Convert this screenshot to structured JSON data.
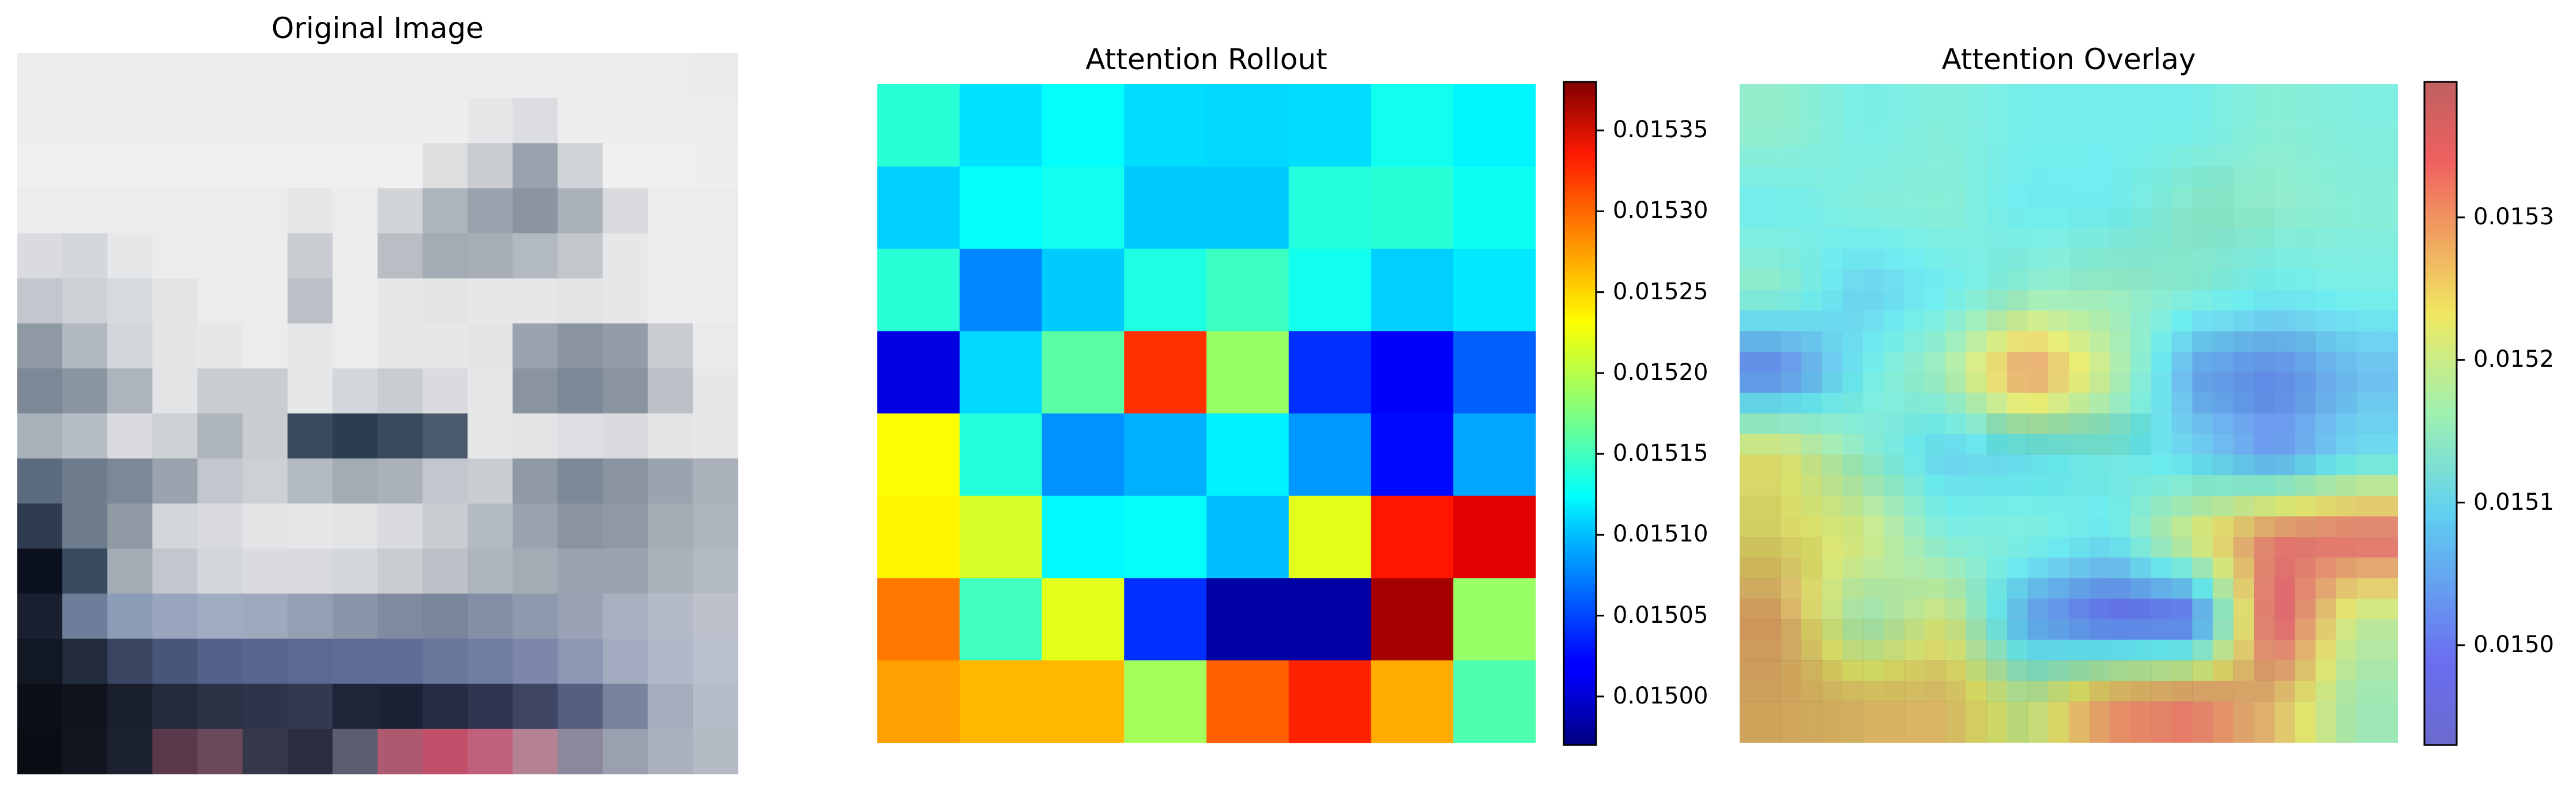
{
  "chart_data": [
    {
      "type": "image",
      "title": "Original Image",
      "grid": false,
      "rows": 16,
      "cols": 16,
      "pixels": [
        [
          "#ececec",
          "#ececec",
          "#ececec",
          "#ececec",
          "#ececec",
          "#ececec",
          "#ececec",
          "#ececec",
          "#ececec",
          "#ececec",
          "#ececec",
          "#ececec",
          "#ececec",
          "#ececec",
          "#ececec",
          "#ebebeb"
        ],
        [
          "#eeeeee",
          "#eeeeee",
          "#eeeeee",
          "#eeeeee",
          "#eeeeee",
          "#eeeeee",
          "#eeeeee",
          "#eeeeee",
          "#eeeeee",
          "#eeeeee",
          "#e6e7e8",
          "#dcdde0",
          "#eeeeee",
          "#eeeeee",
          "#eeeeee",
          "#ededed"
        ],
        [
          "#efefef",
          "#efefef",
          "#efefef",
          "#efefef",
          "#efefef",
          "#efefef",
          "#efefef",
          "#efefef",
          "#efefef",
          "#dcdee0",
          "#c9ccd1",
          "#9aa3ad",
          "#cfd2d6",
          "#efefef",
          "#efefef",
          "#eeeeee"
        ],
        [
          "#ececec",
          "#ececec",
          "#ececec",
          "#ececec",
          "#ececec",
          "#ececec",
          "#e6e7e8",
          "#ececec",
          "#d2d5d8",
          "#aeb4bb",
          "#9aa3ad",
          "#8a95a1",
          "#aab1b8",
          "#d8dadd",
          "#ececec",
          "#ececec"
        ],
        [
          "#d9dbde",
          "#d3d6da",
          "#e6e7e8",
          "#ececec",
          "#ececec",
          "#ececec",
          "#c9ccd1",
          "#ececec",
          "#b9bec4",
          "#a3abb4",
          "#a7aeb6",
          "#b3b9c0",
          "#c3c7cc",
          "#e6e7e8",
          "#ececec",
          "#ececec"
        ],
        [
          "#c3c7cd",
          "#cdd0d5",
          "#d6d9dd",
          "#e2e4e6",
          "#ececec",
          "#ececec",
          "#bcc1c7",
          "#ececec",
          "#e6e7e8",
          "#e2e4e6",
          "#e6e7e8",
          "#e6e7e8",
          "#e2e4e6",
          "#e6e7e8",
          "#ececec",
          "#ececec"
        ],
        [
          "#8f99a4",
          "#b2b8bf",
          "#d3d6da",
          "#e2e4e6",
          "#e6e7e8",
          "#ececec",
          "#e6e7e8",
          "#ececec",
          "#e6e7e8",
          "#e6e7e8",
          "#e2e4e6",
          "#9aa3ae",
          "#8a94a0",
          "#939ca7",
          "#c9ccd1",
          "#e9eaeb"
        ],
        [
          "#7d8896",
          "#8a95a2",
          "#aeb4bc",
          "#e2e4e6",
          "#c9ccd1",
          "#c9ccd1",
          "#e6e7e8",
          "#d3d6da",
          "#c9ccd1",
          "#d9dbde",
          "#e6e7e8",
          "#8a94a0",
          "#7d8896",
          "#8a94a0",
          "#bcc1c7",
          "#e6e7e8"
        ],
        [
          "#a8b0ba",
          "#b7bdc5",
          "#d9dbde",
          "#cdd0d5",
          "#aeb4bc",
          "#c9ccd1",
          "#3a4a5e",
          "#2c3d52",
          "#3a4a5e",
          "#4b5a6c",
          "#e6e7e8",
          "#e2e4e6",
          "#dcdee2",
          "#d9dbde",
          "#e2e4e6",
          "#e6e7e8"
        ],
        [
          "#5b6a7e",
          "#6f7c8d",
          "#7d8896",
          "#9aa3ae",
          "#c3c7cd",
          "#cdd0d5",
          "#b4bac2",
          "#a3abb4",
          "#aab1b8",
          "#c3c7cd",
          "#c9ccd1",
          "#8f99a4",
          "#7d8896",
          "#8a94a0",
          "#9aa3ae",
          "#aab1b8"
        ],
        [
          "#2f3b4e",
          "#6f7c8d",
          "#8f99a4",
          "#d3d6da",
          "#d9dbde",
          "#e2e4e6",
          "#e6e7e8",
          "#e2e4e6",
          "#d9dbde",
          "#c9ccd1",
          "#b4bac2",
          "#9aa3ae",
          "#8a94a0",
          "#8f99a4",
          "#a3abb4",
          "#aeb4bc"
        ],
        [
          "#0c1120",
          "#3a4a5e",
          "#a3abb4",
          "#c3c7cd",
          "#d3d6da",
          "#d9dbde",
          "#d9dbde",
          "#d3d6da",
          "#c9ccd1",
          "#bcc1c7",
          "#aeb4bc",
          "#a3abb4",
          "#9aa3ae",
          "#9aa3ae",
          "#aab1b8",
          "#b4bac2"
        ],
        [
          "#1a2030",
          "#6e7e9a",
          "#8c9bb6",
          "#98a5bd",
          "#a0acc2",
          "#9ea9bd",
          "#949fb3",
          "#8a95aa",
          "#7f8aa0",
          "#7a869c",
          "#8590a6",
          "#8f99ad",
          "#9aa3b5",
          "#a8b0bf",
          "#b4bac6",
          "#bcc1cb"
        ],
        [
          "#121724",
          "#222a3e",
          "#3a4562",
          "#4a557a",
          "#56618a",
          "#5a658e",
          "#5e6992",
          "#606b94",
          "#626d96",
          "#6a759c",
          "#727da2",
          "#7c87aa",
          "#8e97b4",
          "#a3abc0",
          "#b0b7c8",
          "#b9bfcc"
        ],
        [
          "#0b0f18",
          "#0f141f",
          "#1a1f2c",
          "#232a3c",
          "#2b3246",
          "#2e354a",
          "#323a52",
          "#1f2538",
          "#1c2236",
          "#252c44",
          "#2e3650",
          "#3e4664",
          "#55607e",
          "#7a839e",
          "#a6adbd",
          "#b6bcc8"
        ],
        [
          "#0a0d14",
          "#111620",
          "#1d2230",
          "#5a3a4a",
          "#6a4a5a",
          "#343848",
          "#2a2e3e",
          "#5a5e6e",
          "#ad5a70",
          "#c2506a",
          "#c0607a",
          "#b48292",
          "#8a889a",
          "#9aa0ae",
          "#aab0bc",
          "#b4bac4"
        ]
      ]
    },
    {
      "type": "heatmap",
      "title": "Attention Rollout",
      "grid": false,
      "rows": 8,
      "cols": 8,
      "values": [
        [
          0.01514,
          0.015112,
          0.015125,
          0.01511,
          0.015108,
          0.01511,
          0.01513,
          0.01512
        ],
        [
          0.015105,
          0.015125,
          0.01513,
          0.015102,
          0.015103,
          0.015138,
          0.01514,
          0.015128
        ],
        [
          0.01514,
          0.015075,
          0.015103,
          0.015135,
          0.015148,
          0.01513,
          0.015105,
          0.015115
        ],
        [
          0.01501,
          0.015108,
          0.01516,
          0.01531,
          0.015185,
          0.01504,
          0.01502,
          0.01506
        ],
        [
          0.015225,
          0.015138,
          0.01508,
          0.015092,
          0.015118,
          0.015082,
          0.015025,
          0.015088
        ],
        [
          0.01523,
          0.01521,
          0.015122,
          0.015125,
          0.015098,
          0.015215,
          0.01532,
          0.01534
        ],
        [
          0.01528,
          0.01515,
          0.015215,
          0.01504,
          0.014985,
          0.014985,
          0.015365,
          0.015185
        ],
        [
          0.015265,
          0.015255,
          0.015255,
          0.01519,
          0.01529,
          0.015315,
          0.01526,
          0.015155
        ]
      ],
      "colormap": "jet",
      "colorbar": {
        "range": [
          0.01497,
          0.01538
        ],
        "ticks": [
          0.015,
          0.01505,
          0.0151,
          0.01515,
          0.0152,
          0.01525,
          0.0153,
          0.01535
        ],
        "tick_labels": [
          "0.01500",
          "0.01505",
          "0.01510",
          "0.01515",
          "0.01520",
          "0.01525",
          "0.01530",
          "0.01535"
        ]
      }
    },
    {
      "type": "heatmap",
      "title": "Attention Overlay",
      "grid": false,
      "overlay_opacity": 0.55,
      "colormap": "jet",
      "colorbar": {
        "range": [
          0.01493,
          0.015395
        ],
        "ticks": [
          0.015,
          0.0151,
          0.0152,
          0.0153
        ],
        "tick_labels": [
          "0.0150",
          "0.0151",
          "0.0152",
          "0.0153"
        ]
      }
    }
  ]
}
